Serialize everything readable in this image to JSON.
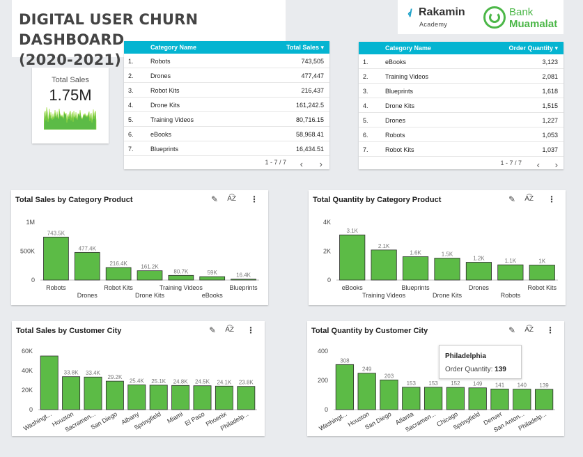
{
  "header": {
    "title_line1": "DIGITAL USER CHURN DASHBOARD",
    "title_line2": "(2020-2021)"
  },
  "logos": {
    "rakamin_name": "Rakamin",
    "rakamin_sub": "Academy",
    "bank_line1": "Bank",
    "bank_line2": "Muamalat"
  },
  "scorecard": {
    "label": "Total Sales",
    "value": "1.75M"
  },
  "colors": {
    "accent": "#04b4d1",
    "bar": "#5cbb46",
    "bar_stroke": "#2b2b2b"
  },
  "table_sales": {
    "col1": "Category Name",
    "col2": "Total Sales",
    "rows": [
      {
        "n": "1.",
        "name": "Robots",
        "value": "743,505"
      },
      {
        "n": "2.",
        "name": "Drones",
        "value": "477,447"
      },
      {
        "n": "3.",
        "name": "Robot Kits",
        "value": "216,437"
      },
      {
        "n": "4.",
        "name": "Drone Kits",
        "value": "161,242.5"
      },
      {
        "n": "5.",
        "name": "Training Videos",
        "value": "80,716.15"
      },
      {
        "n": "6.",
        "name": "eBooks",
        "value": "58,968.41"
      },
      {
        "n": "7.",
        "name": "Blueprints",
        "value": "16,434.51"
      }
    ],
    "pagination": "1 - 7 / 7"
  },
  "table_qty": {
    "col1": "Category Name",
    "col2": "Order Quantity",
    "rows": [
      {
        "n": "1.",
        "name": "eBooks",
        "value": "3,123"
      },
      {
        "n": "2.",
        "name": "Training Videos",
        "value": "2,081"
      },
      {
        "n": "3.",
        "name": "Blueprints",
        "value": "1,618"
      },
      {
        "n": "4.",
        "name": "Drone Kits",
        "value": "1,515"
      },
      {
        "n": "5.",
        "name": "Drones",
        "value": "1,227"
      },
      {
        "n": "6.",
        "name": "Robots",
        "value": "1,053"
      },
      {
        "n": "7.",
        "name": "Robot Kits",
        "value": "1,037"
      }
    ],
    "pagination": "1 - 7 / 7"
  },
  "tooltip": {
    "title": "Philadelphia",
    "label": "Order Quantity:",
    "value": "139"
  },
  "chart_data": [
    {
      "type": "bar",
      "title": "Total Sales by Category Product",
      "categories": [
        "Robots",
        "Drones",
        "Robot Kits",
        "Drone Kits",
        "Training Videos",
        "eBooks",
        "Blueprints"
      ],
      "values": [
        743505,
        477447,
        216437,
        161242.5,
        80716.15,
        58968.41,
        16434.51
      ],
      "data_labels": [
        "743.5K",
        "477.4K",
        "216.4K",
        "161.2K",
        "80.7K",
        "59K",
        "16.4K"
      ],
      "yticks": [
        0,
        500000,
        1000000
      ],
      "ytick_labels": [
        "0",
        "500K",
        "1M"
      ],
      "ylim": [
        0,
        1000000
      ],
      "label_mode": "stagger",
      "grid": false
    },
    {
      "type": "bar",
      "title": "Total Quantity by Category Product",
      "categories": [
        "eBooks",
        "Training Videos",
        "Blueprints",
        "Drone Kits",
        "Drones",
        "Robots",
        "Robot Kits"
      ],
      "values": [
        3123,
        2081,
        1618,
        1515,
        1227,
        1053,
        1037
      ],
      "data_labels": [
        "3.1K",
        "2.1K",
        "1.6K",
        "1.5K",
        "1.2K",
        "1.1K",
        "1K"
      ],
      "yticks": [
        0,
        2000,
        4000
      ],
      "ytick_labels": [
        "0",
        "2K",
        "4K"
      ],
      "ylim": [
        0,
        4000
      ],
      "label_mode": "stagger",
      "grid": false
    },
    {
      "type": "bar",
      "title": "Total Sales by Customer City",
      "categories": [
        "Washingt...",
        "Houston",
        "Sacramen...",
        "San Diego",
        "Albany",
        "Springfield",
        "Miami",
        "El Paso",
        "Phoenix",
        "Philadelp..."
      ],
      "values": [
        55000,
        33800,
        33400,
        29200,
        25400,
        25100,
        24800,
        24500,
        24100,
        23800
      ],
      "data_labels": [
        "",
        "33.8K",
        "33.4K",
        "29.2K",
        "25.4K",
        "25.1K",
        "24.8K",
        "24.5K",
        "24.1K",
        "23.8K"
      ],
      "yticks": [
        0,
        20000,
        40000,
        60000
      ],
      "ytick_labels": [
        "0",
        "20K",
        "40K",
        "60K"
      ],
      "ylim": [
        0,
        60000
      ],
      "label_mode": "rotate",
      "grid": false
    },
    {
      "type": "bar",
      "title": "Total Quantity by Customer City",
      "categories": [
        "Washingt...",
        "Houston",
        "San Diego",
        "Atlanta",
        "Sacramen...",
        "Chicago",
        "Springfield",
        "Denver",
        "San Anton...",
        "Philadelp..."
      ],
      "values": [
        308,
        249,
        203,
        153,
        153,
        152,
        149,
        141,
        140,
        139
      ],
      "data_labels": [
        "308",
        "249",
        "203",
        "153",
        "153",
        "152",
        "149",
        "141",
        "140",
        "139"
      ],
      "yticks": [
        0,
        200,
        400
      ],
      "ytick_labels": [
        "0",
        "200",
        "400"
      ],
      "ylim": [
        0,
        400
      ],
      "label_mode": "rotate",
      "grid": false
    }
  ]
}
